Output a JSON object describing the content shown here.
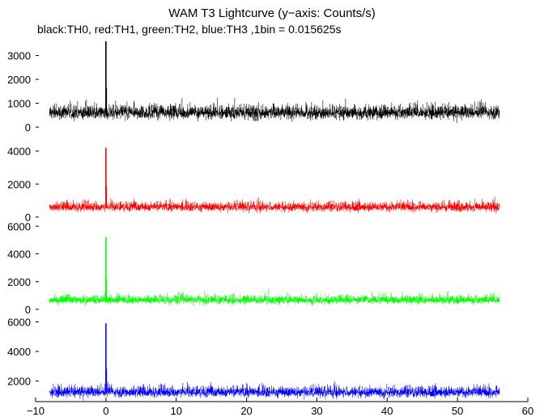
{
  "title": "WAM T3 Lightcurve (y−axis: Counts/s)",
  "subtitle": "black:TH0, red:TH1, green:TH2, blue:TH3 ,1bin = 0.015625s",
  "chart_data": {
    "type": "line",
    "x_range": [
      -10,
      60
    ],
    "x_ticks": [
      -10,
      0,
      10,
      20,
      30,
      40,
      50,
      60
    ],
    "x_tick_labels": [
      "−10",
      "0",
      "10",
      "20",
      "30",
      "40",
      "50",
      "60"
    ],
    "series": [
      {
        "name": "TH0",
        "color": "#000000",
        "ylim": [
          0,
          3800
        ],
        "yticks": [
          0,
          1000,
          2000,
          3000
        ],
        "x_start": -8,
        "x_end": 56,
        "baseline": 560,
        "noise": 110,
        "spike_peak": 3600
      },
      {
        "name": "TH1",
        "color": "#ff0000",
        "ylim": [
          0,
          5400
        ],
        "yticks": [
          0,
          2000,
          4000
        ],
        "x_start": -8,
        "x_end": 56,
        "baseline": 560,
        "noise": 110,
        "spike_peak": 4200
      },
      {
        "name": "TH2",
        "color": "#00ff00",
        "ylim": [
          0,
          6600
        ],
        "yticks": [
          0,
          2000,
          4000,
          6000
        ],
        "x_start": -8,
        "x_end": 56,
        "baseline": 620,
        "noise": 120,
        "spike_peak": 5200
      },
      {
        "name": "TH3",
        "color": "#0000ff",
        "ylim": [
          600,
          6800
        ],
        "yticks": [
          2000,
          4000,
          6000
        ],
        "x_start": -8,
        "x_end": 56,
        "baseline": 1180,
        "noise": 140,
        "spike_peak": 5900
      }
    ]
  }
}
